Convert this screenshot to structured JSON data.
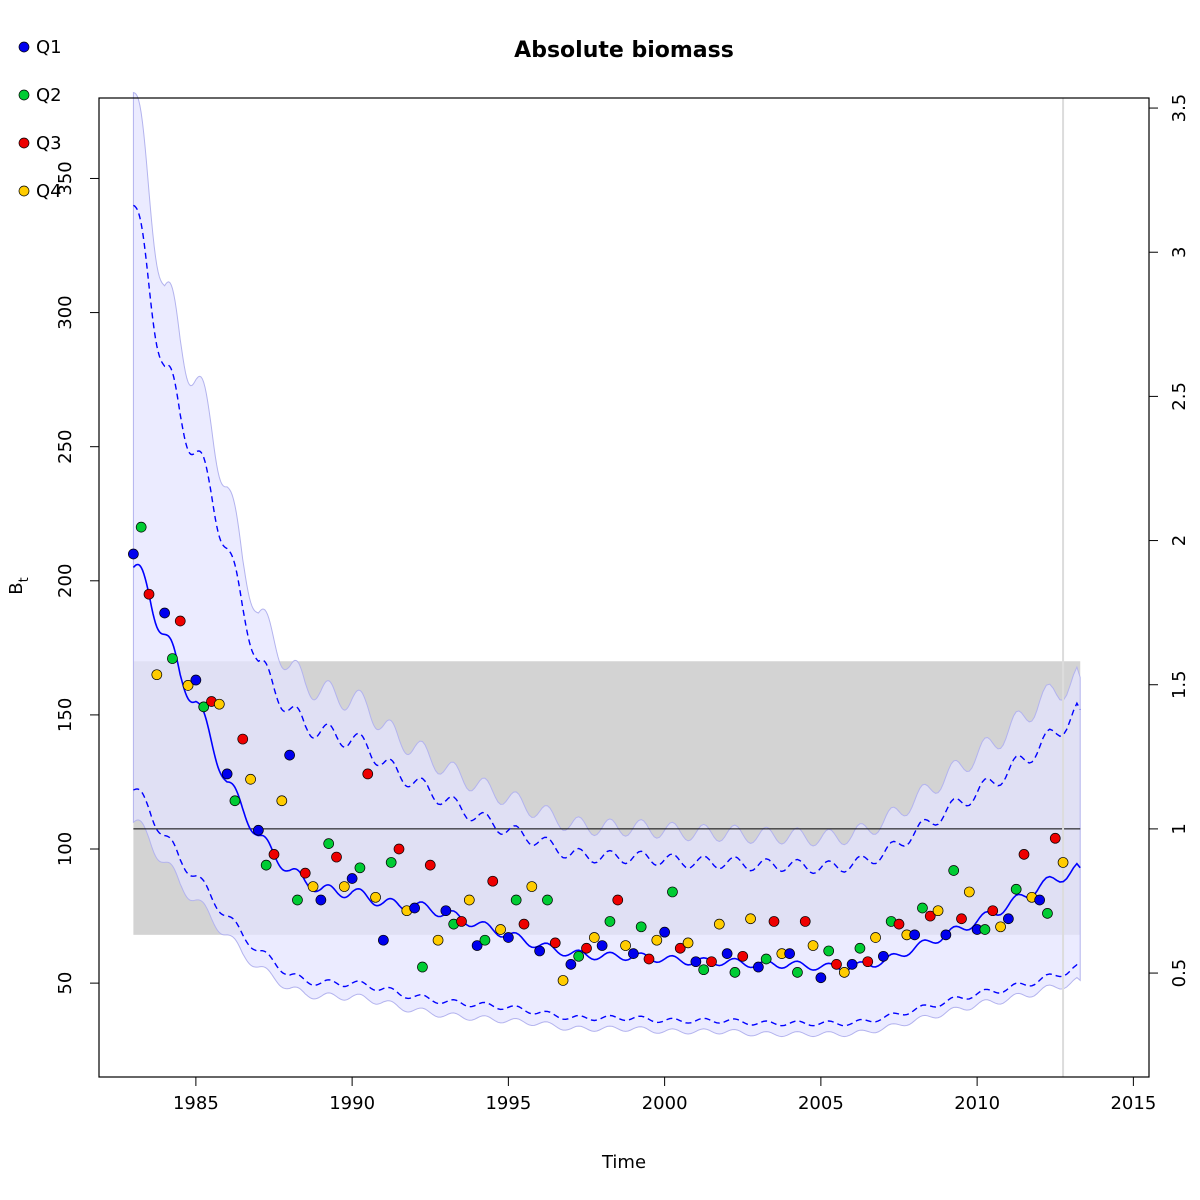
{
  "chart_data": {
    "type": "line",
    "title": "Absolute biomass",
    "xlabel": "Time",
    "ylabel_main": "B",
    "ylabel_sub": "t",
    "xlim": [
      1981.9,
      2015.5
    ],
    "ylim": [
      15,
      380
    ],
    "x_ticks": [
      1985,
      1990,
      1995,
      2000,
      2005,
      2010,
      2015
    ],
    "x_tick_labels": [
      "1985",
      "1990",
      "1995",
      "2000",
      "2005",
      "2010",
      "2015"
    ],
    "y_ticks": [
      50,
      100,
      150,
      200,
      250,
      300,
      350
    ],
    "y_tick_labels": [
      "50",
      "100",
      "150",
      "200",
      "250",
      "300",
      "350"
    ],
    "y2_ticks": [
      0.5,
      1,
      1.5,
      2,
      2.5,
      3,
      3.5
    ],
    "y2_tick_labels": [
      "0.5",
      "1",
      "1.5",
      "2",
      "2.5",
      "3",
      "3.5"
    ],
    "y2_scale": 107.5,
    "reference_line": 107.5,
    "reference_band": {
      "x": [
        1983,
        2013.3
      ],
      "y": [
        68,
        170
      ]
    },
    "vertical_line_x": 2012.75,
    "legend": {
      "placement": "top-left",
      "entries": [
        {
          "name": "Q1",
          "color": "#0000ee"
        },
        {
          "name": "Q2",
          "color": "#00cc33"
        },
        {
          "name": "Q3",
          "color": "#ee0000"
        },
        {
          "name": "Q4",
          "color": "#ffcc00"
        }
      ]
    },
    "colors": {
      "estimate": "#0000ff",
      "ci_fill": "#e4e4ff",
      "ci_outline": "#b3b3ee",
      "band": "#d3d3d3",
      "band_overlap": "#bfbfdb",
      "reference_line": "#000000",
      "vertical_line": "#dcdcdc"
    },
    "series": [
      {
        "name": "B_t",
        "style": "solid",
        "x": [
          1983.0,
          1983.5,
          1984.0,
          1984.5,
          1985.0,
          1985.5,
          1986.0,
          1986.5,
          1987.0,
          1987.5,
          1988.0,
          1988.5,
          1989.0,
          1989.5,
          1990.0,
          1990.5,
          1991.0,
          1991.5,
          1992.0,
          1993.0,
          1994.0,
          1995.0,
          1996.0,
          1997.0,
          1998.0,
          1999.0,
          2000.0,
          2001.0,
          2002.0,
          2003.0,
          2004.0,
          2005.0,
          2006.0,
          2007.0,
          2008.0,
          2009.0,
          2010.0,
          2011.0,
          2012.0,
          2013.3
        ],
        "y": [
          205,
          195,
          180,
          165,
          155,
          140,
          125,
          115,
          105,
          98,
          92,
          88,
          85,
          84,
          84,
          82,
          80,
          79,
          79,
          76,
          72,
          68,
          64,
          61,
          60,
          60,
          59,
          58,
          58,
          57,
          57,
          56,
          56,
          58,
          63,
          68,
          73,
          79,
          86,
          93
        ]
      },
      {
        "name": "upper_ci",
        "style": "dashed",
        "x": [
          1983.0,
          1983.5,
          1984.0,
          1984.5,
          1985.0,
          1985.5,
          1986.0,
          1986.5,
          1987.0,
          1987.5,
          1988.0,
          1988.5,
          1989.0,
          1989.5,
          1990.0,
          1990.5,
          1991.0,
          1991.5,
          1992.0,
          1993.0,
          1994.0,
          1995.0,
          1996.0,
          1997.0,
          1998.0,
          1999.0,
          2000.0,
          2001.0,
          2002.0,
          2003.0,
          2004.0,
          2005.0,
          2006.0,
          2007.0,
          2008.0,
          2009.0,
          2010.0,
          2011.0,
          2012.0,
          2013.3
        ],
        "y": [
          340,
          310,
          280,
          262,
          248,
          232,
          212,
          190,
          170,
          160,
          152,
          146,
          144,
          142,
          141,
          138,
          132,
          128,
          125,
          118,
          112,
          107,
          103,
          98,
          97,
          97,
          96,
          95,
          95,
          94,
          94,
          93,
          94,
          98,
          106,
          114,
          121,
          129,
          138,
          152
        ]
      },
      {
        "name": "lower_ci",
        "style": "dashed",
        "x": [
          1983.0,
          1983.5,
          1984.0,
          1984.5,
          1985.0,
          1985.5,
          1986.0,
          1986.5,
          1987.0,
          1987.5,
          1988.0,
          1988.5,
          1989.0,
          1989.5,
          1990.0,
          1990.5,
          1991.0,
          1991.5,
          1992.0,
          1993.0,
          1994.0,
          1995.0,
          1996.0,
          1997.0,
          1998.0,
          1999.0,
          2000.0,
          2001.0,
          2002.0,
          2003.0,
          2004.0,
          2005.0,
          2006.0,
          2007.0,
          2008.0,
          2009.0,
          2010.0,
          2011.0,
          2012.0,
          2013.3
        ],
        "y": [
          122,
          115,
          105,
          96,
          90,
          82,
          75,
          68,
          62,
          58,
          53,
          51,
          50,
          50,
          50,
          49,
          48,
          46,
          45,
          43,
          42,
          41,
          39,
          37,
          37,
          37,
          36,
          36,
          36,
          35,
          35,
          35,
          35,
          37,
          40,
          43,
          46,
          48,
          51,
          56
        ]
      },
      {
        "name": "outer_upper",
        "style": "fill",
        "x": [
          1983.0,
          1983.5,
          1984.0,
          1984.5,
          1985.0,
          1985.5,
          1986.0,
          1986.5,
          1987.0,
          1987.5,
          1988.0,
          1988.5,
          1989.0,
          1989.5,
          1990.0,
          1990.5,
          1991.0,
          1991.5,
          1992.0,
          1993.0,
          1994.0,
          1995.0,
          1996.0,
          1997.0,
          1998.0,
          1999.0,
          2000.0,
          2001.0,
          2002.0,
          2003.0,
          2004.0,
          2005.0,
          2006.0,
          2007.0,
          2008.0,
          2009.0,
          2010.0,
          2011.0,
          2012.0,
          2013.3
        ],
        "y": [
          382,
          345,
          310,
          290,
          275,
          257,
          235,
          208,
          188,
          178,
          168,
          162,
          159,
          157,
          156,
          153,
          146,
          141,
          138,
          130,
          124,
          119,
          114,
          109,
          108,
          108,
          107,
          106,
          106,
          105,
          105,
          104,
          105,
          110,
          118,
          127,
          135,
          144,
          155,
          164
        ]
      },
      {
        "name": "outer_lower",
        "style": "fill",
        "x": [
          1983.0,
          1983.5,
          1984.0,
          1984.5,
          1985.0,
          1985.5,
          1986.0,
          1986.5,
          1987.0,
          1987.5,
          1988.0,
          1988.5,
          1989.0,
          1989.5,
          1990.0,
          1990.5,
          1991.0,
          1991.5,
          1992.0,
          1993.0,
          1994.0,
          1995.0,
          1996.0,
          1997.0,
          1998.0,
          1999.0,
          2000.0,
          2001.0,
          2002.0,
          2003.0,
          2004.0,
          2005.0,
          2006.0,
          2007.0,
          2008.0,
          2009.0,
          2010.0,
          2011.0,
          2012.0,
          2013.3
        ],
        "y": [
          110,
          104,
          95,
          87,
          81,
          74,
          68,
          61,
          56,
          52,
          48,
          46,
          45,
          45,
          45,
          44,
          43,
          41,
          40,
          38,
          37,
          36,
          35,
          33,
          33,
          33,
          32,
          32,
          32,
          31,
          31,
          31,
          31,
          33,
          36,
          39,
          42,
          44,
          47,
          51
        ]
      }
    ],
    "points": [
      {
        "x": 1983.0,
        "y": 210,
        "q": 1
      },
      {
        "x": 1983.25,
        "y": 220,
        "q": 2
      },
      {
        "x": 1983.5,
        "y": 195,
        "q": 3
      },
      {
        "x": 1983.75,
        "y": 165,
        "q": 4
      },
      {
        "x": 1984.0,
        "y": 188,
        "q": 1
      },
      {
        "x": 1984.25,
        "y": 171,
        "q": 2
      },
      {
        "x": 1984.5,
        "y": 185,
        "q": 3
      },
      {
        "x": 1984.75,
        "y": 161,
        "q": 4
      },
      {
        "x": 1985.0,
        "y": 163,
        "q": 1
      },
      {
        "x": 1985.25,
        "y": 153,
        "q": 2
      },
      {
        "x": 1985.5,
        "y": 155,
        "q": 3
      },
      {
        "x": 1985.75,
        "y": 154,
        "q": 4
      },
      {
        "x": 1986.0,
        "y": 128,
        "q": 1
      },
      {
        "x": 1986.25,
        "y": 118,
        "q": 2
      },
      {
        "x": 1986.5,
        "y": 141,
        "q": 3
      },
      {
        "x": 1986.75,
        "y": 126,
        "q": 4
      },
      {
        "x": 1987.0,
        "y": 107,
        "q": 1
      },
      {
        "x": 1987.25,
        "y": 94,
        "q": 2
      },
      {
        "x": 1987.5,
        "y": 98,
        "q": 3
      },
      {
        "x": 1987.75,
        "y": 118,
        "q": 4
      },
      {
        "x": 1988.0,
        "y": 135,
        "q": 1
      },
      {
        "x": 1988.25,
        "y": 81,
        "q": 2
      },
      {
        "x": 1988.5,
        "y": 91,
        "q": 3
      },
      {
        "x": 1988.75,
        "y": 86,
        "q": 4
      },
      {
        "x": 1989.0,
        "y": 81,
        "q": 1
      },
      {
        "x": 1989.25,
        "y": 102,
        "q": 2
      },
      {
        "x": 1989.5,
        "y": 97,
        "q": 3
      },
      {
        "x": 1989.75,
        "y": 86,
        "q": 4
      },
      {
        "x": 1990.0,
        "y": 89,
        "q": 1
      },
      {
        "x": 1990.25,
        "y": 93,
        "q": 2
      },
      {
        "x": 1990.5,
        "y": 128,
        "q": 3
      },
      {
        "x": 1990.75,
        "y": 82,
        "q": 4
      },
      {
        "x": 1991.0,
        "y": 66,
        "q": 1
      },
      {
        "x": 1991.25,
        "y": 95,
        "q": 2
      },
      {
        "x": 1991.5,
        "y": 100,
        "q": 3
      },
      {
        "x": 1991.75,
        "y": 77,
        "q": 4
      },
      {
        "x": 1992.0,
        "y": 78,
        "q": 1
      },
      {
        "x": 1992.25,
        "y": 56,
        "q": 2
      },
      {
        "x": 1992.5,
        "y": 94,
        "q": 3
      },
      {
        "x": 1992.75,
        "y": 66,
        "q": 4
      },
      {
        "x": 1993.0,
        "y": 77,
        "q": 1
      },
      {
        "x": 1993.25,
        "y": 72,
        "q": 2
      },
      {
        "x": 1993.5,
        "y": 73,
        "q": 3
      },
      {
        "x": 1993.75,
        "y": 81,
        "q": 4
      },
      {
        "x": 1994.0,
        "y": 64,
        "q": 1
      },
      {
        "x": 1994.25,
        "y": 66,
        "q": 2
      },
      {
        "x": 1994.5,
        "y": 88,
        "q": 3
      },
      {
        "x": 1994.75,
        "y": 70,
        "q": 4
      },
      {
        "x": 1995.0,
        "y": 67,
        "q": 1
      },
      {
        "x": 1995.25,
        "y": 81,
        "q": 2
      },
      {
        "x": 1995.5,
        "y": 72,
        "q": 3
      },
      {
        "x": 1995.75,
        "y": 86,
        "q": 4
      },
      {
        "x": 1996.0,
        "y": 62,
        "q": 1
      },
      {
        "x": 1996.25,
        "y": 81,
        "q": 2
      },
      {
        "x": 1996.5,
        "y": 65,
        "q": 3
      },
      {
        "x": 1996.75,
        "y": 51,
        "q": 4
      },
      {
        "x": 1997.0,
        "y": 57,
        "q": 1
      },
      {
        "x": 1997.25,
        "y": 60,
        "q": 2
      },
      {
        "x": 1997.5,
        "y": 63,
        "q": 3
      },
      {
        "x": 1997.75,
        "y": 67,
        "q": 4
      },
      {
        "x": 1998.0,
        "y": 64,
        "q": 1
      },
      {
        "x": 1998.25,
        "y": 73,
        "q": 2
      },
      {
        "x": 1998.5,
        "y": 81,
        "q": 3
      },
      {
        "x": 1998.75,
        "y": 64,
        "q": 4
      },
      {
        "x": 1999.0,
        "y": 61,
        "q": 1
      },
      {
        "x": 1999.25,
        "y": 71,
        "q": 2
      },
      {
        "x": 1999.5,
        "y": 59,
        "q": 3
      },
      {
        "x": 1999.75,
        "y": 66,
        "q": 4
      },
      {
        "x": 2000.0,
        "y": 69,
        "q": 1
      },
      {
        "x": 2000.25,
        "y": 84,
        "q": 2
      },
      {
        "x": 2000.5,
        "y": 63,
        "q": 3
      },
      {
        "x": 2000.75,
        "y": 65,
        "q": 4
      },
      {
        "x": 2001.0,
        "y": 58,
        "q": 1
      },
      {
        "x": 2001.25,
        "y": 55,
        "q": 2
      },
      {
        "x": 2001.5,
        "y": 58,
        "q": 3
      },
      {
        "x": 2001.75,
        "y": 72,
        "q": 4
      },
      {
        "x": 2002.0,
        "y": 61,
        "q": 1
      },
      {
        "x": 2002.25,
        "y": 54,
        "q": 2
      },
      {
        "x": 2002.5,
        "y": 60,
        "q": 3
      },
      {
        "x": 2002.75,
        "y": 74,
        "q": 4
      },
      {
        "x": 2003.0,
        "y": 56,
        "q": 1
      },
      {
        "x": 2003.25,
        "y": 59,
        "q": 2
      },
      {
        "x": 2003.5,
        "y": 73,
        "q": 3
      },
      {
        "x": 2003.75,
        "y": 61,
        "q": 4
      },
      {
        "x": 2004.0,
        "y": 61,
        "q": 1
      },
      {
        "x": 2004.25,
        "y": 54,
        "q": 2
      },
      {
        "x": 2004.5,
        "y": 73,
        "q": 3
      },
      {
        "x": 2004.75,
        "y": 64,
        "q": 4
      },
      {
        "x": 2005.0,
        "y": 52,
        "q": 1
      },
      {
        "x": 2005.25,
        "y": 62,
        "q": 2
      },
      {
        "x": 2005.5,
        "y": 57,
        "q": 3
      },
      {
        "x": 2005.75,
        "y": 54,
        "q": 4
      },
      {
        "x": 2006.0,
        "y": 57,
        "q": 1
      },
      {
        "x": 2006.25,
        "y": 63,
        "q": 2
      },
      {
        "x": 2006.5,
        "y": 58,
        "q": 3
      },
      {
        "x": 2006.75,
        "y": 67,
        "q": 4
      },
      {
        "x": 2007.0,
        "y": 60,
        "q": 1
      },
      {
        "x": 2007.25,
        "y": 73,
        "q": 2
      },
      {
        "x": 2007.5,
        "y": 72,
        "q": 3
      },
      {
        "x": 2007.75,
        "y": 68,
        "q": 4
      },
      {
        "x": 2008.0,
        "y": 68,
        "q": 1
      },
      {
        "x": 2008.25,
        "y": 78,
        "q": 2
      },
      {
        "x": 2008.5,
        "y": 75,
        "q": 3
      },
      {
        "x": 2008.75,
        "y": 77,
        "q": 4
      },
      {
        "x": 2009.0,
        "y": 68,
        "q": 1
      },
      {
        "x": 2009.25,
        "y": 92,
        "q": 2
      },
      {
        "x": 2009.5,
        "y": 74,
        "q": 3
      },
      {
        "x": 2009.75,
        "y": 84,
        "q": 4
      },
      {
        "x": 2010.0,
        "y": 70,
        "q": 1
      },
      {
        "x": 2010.25,
        "y": 70,
        "q": 2
      },
      {
        "x": 2010.5,
        "y": 77,
        "q": 3
      },
      {
        "x": 2010.75,
        "y": 71,
        "q": 4
      },
      {
        "x": 2011.0,
        "y": 74,
        "q": 1
      },
      {
        "x": 2011.25,
        "y": 85,
        "q": 2
      },
      {
        "x": 2011.5,
        "y": 98,
        "q": 3
      },
      {
        "x": 2011.75,
        "y": 82,
        "q": 4
      },
      {
        "x": 2012.0,
        "y": 81,
        "q": 1
      },
      {
        "x": 2012.25,
        "y": 76,
        "q": 2
      },
      {
        "x": 2012.5,
        "y": 104,
        "q": 3
      },
      {
        "x": 2012.75,
        "y": 95,
        "q": 4
      }
    ]
  }
}
